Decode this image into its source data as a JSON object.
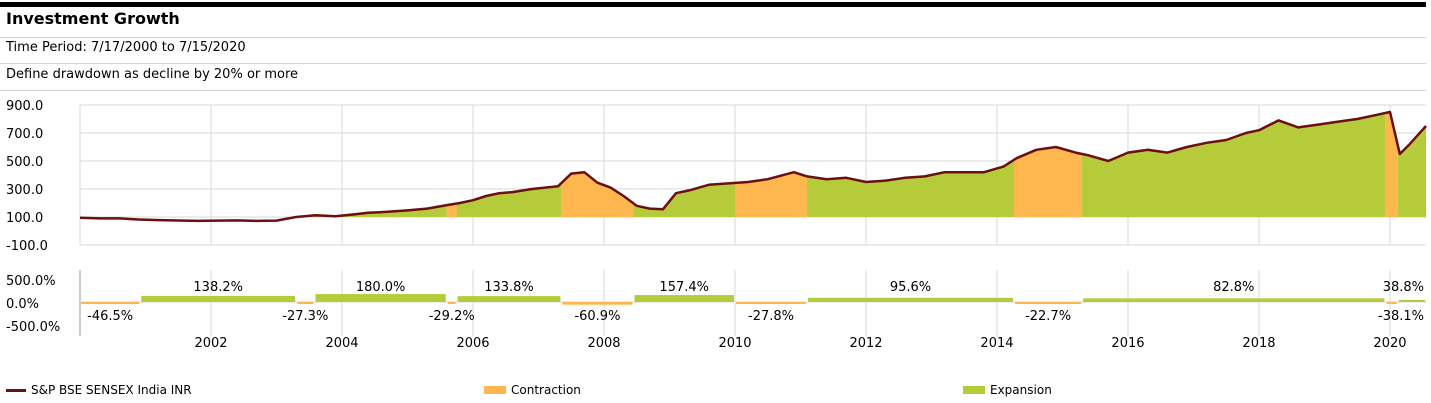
{
  "header": {
    "title": "Investment Growth",
    "time_period": "Time Period: 7/17/2000 to 7/15/2020",
    "definition": "Define drawdown as decline by 20% or more"
  },
  "colors": {
    "line": "#6b0f12",
    "contraction": "#fdb74e",
    "expansion": "#b6cb3a",
    "grid": "#d9d9d9"
  },
  "chart_data": {
    "type": "area",
    "x_range": [
      2000.0,
      2020.55
    ],
    "y_range": [
      -100,
      900
    ],
    "y_ticks": [
      "900.0",
      "700.0",
      "500.0",
      "300.0",
      "100.0",
      "-100.0"
    ],
    "x_ticks": [
      "2002",
      "2004",
      "2006",
      "2008",
      "2010",
      "2012",
      "2014",
      "2016",
      "2018",
      "2020"
    ],
    "series": [
      {
        "name": "S&P BSE SENSEX India INR",
        "x": [
          2000.0,
          2000.3,
          2000.6,
          2000.9,
          2001.2,
          2001.5,
          2001.8,
          2002.1,
          2002.4,
          2002.7,
          2003.0,
          2003.3,
          2003.6,
          2003.9,
          2004.2,
          2004.4,
          2004.7,
          2005.0,
          2005.3,
          2005.6,
          2005.8,
          2006.0,
          2006.2,
          2006.4,
          2006.6,
          2006.9,
          2007.1,
          2007.3,
          2007.5,
          2007.7,
          2007.9,
          2008.1,
          2008.3,
          2008.5,
          2008.7,
          2008.9,
          2009.1,
          2009.3,
          2009.6,
          2009.9,
          2010.2,
          2010.5,
          2010.9,
          2011.1,
          2011.4,
          2011.7,
          2012.0,
          2012.3,
          2012.6,
          2012.9,
          2013.2,
          2013.5,
          2013.8,
          2014.1,
          2014.3,
          2014.6,
          2014.9,
          2015.2,
          2015.4,
          2015.7,
          2016.0,
          2016.3,
          2016.6,
          2016.9,
          2017.2,
          2017.5,
          2017.8,
          2018.0,
          2018.3,
          2018.6,
          2018.9,
          2019.2,
          2019.5,
          2019.8,
          2020.0,
          2020.15,
          2020.3,
          2020.55
        ],
        "y": [
          95,
          90,
          90,
          82,
          78,
          75,
          72,
          74,
          76,
          72,
          74,
          100,
          112,
          105,
          120,
          130,
          137,
          147,
          160,
          185,
          200,
          220,
          250,
          270,
          278,
          300,
          310,
          320,
          410,
          420,
          345,
          310,
          250,
          180,
          160,
          155,
          270,
          290,
          330,
          340,
          350,
          370,
          420,
          390,
          370,
          380,
          350,
          360,
          380,
          390,
          420,
          420,
          420,
          460,
          520,
          580,
          600,
          560,
          540,
          500,
          560,
          580,
          560,
          600,
          630,
          650,
          700,
          720,
          790,
          740,
          760,
          780,
          800,
          830,
          850,
          550,
          620,
          750
        ]
      }
    ],
    "phases": [
      {
        "type": "contraction",
        "start": 2000.0,
        "end": 2000.92,
        "change": "-46.5%"
      },
      {
        "type": "expansion",
        "start": 2000.92,
        "end": 2003.3,
        "change": "138.2%"
      },
      {
        "type": "contraction",
        "start": 2003.3,
        "end": 2003.58,
        "change": "-27.3%"
      },
      {
        "type": "expansion",
        "start": 2003.58,
        "end": 2005.6,
        "change": "180.0%"
      },
      {
        "type": "contraction",
        "start": 2005.6,
        "end": 2005.75,
        "change": "-29.2%"
      },
      {
        "type": "expansion",
        "start": 2005.75,
        "end": 2007.35,
        "change": "133.8%"
      },
      {
        "type": "contraction",
        "start": 2007.35,
        "end": 2008.45,
        "change": "-60.9%"
      },
      {
        "type": "expansion",
        "start": 2008.45,
        "end": 2010.0,
        "change": "157.4%"
      },
      {
        "type": "contraction",
        "start": 2010.0,
        "end": 2011.1,
        "change": "-27.8%"
      },
      {
        "type": "expansion",
        "start": 2011.1,
        "end": 2014.26,
        "change": "95.6%"
      },
      {
        "type": "contraction",
        "start": 2014.26,
        "end": 2015.3,
        "change": "-22.7%"
      },
      {
        "type": "expansion",
        "start": 2015.3,
        "end": 2019.93,
        "change": "82.8%"
      },
      {
        "type": "contraction",
        "start": 2019.93,
        "end": 2020.12,
        "change": "-38.1%"
      },
      {
        "type": "expansion",
        "start": 2020.12,
        "end": 2020.55,
        "change": "38.8%"
      }
    ],
    "bar_y_ticks": [
      "500.0%",
      "0.0%",
      "-500.0%"
    ],
    "legend": [
      "S&P BSE SENSEX India INR",
      "Contraction",
      "Expansion"
    ]
  }
}
